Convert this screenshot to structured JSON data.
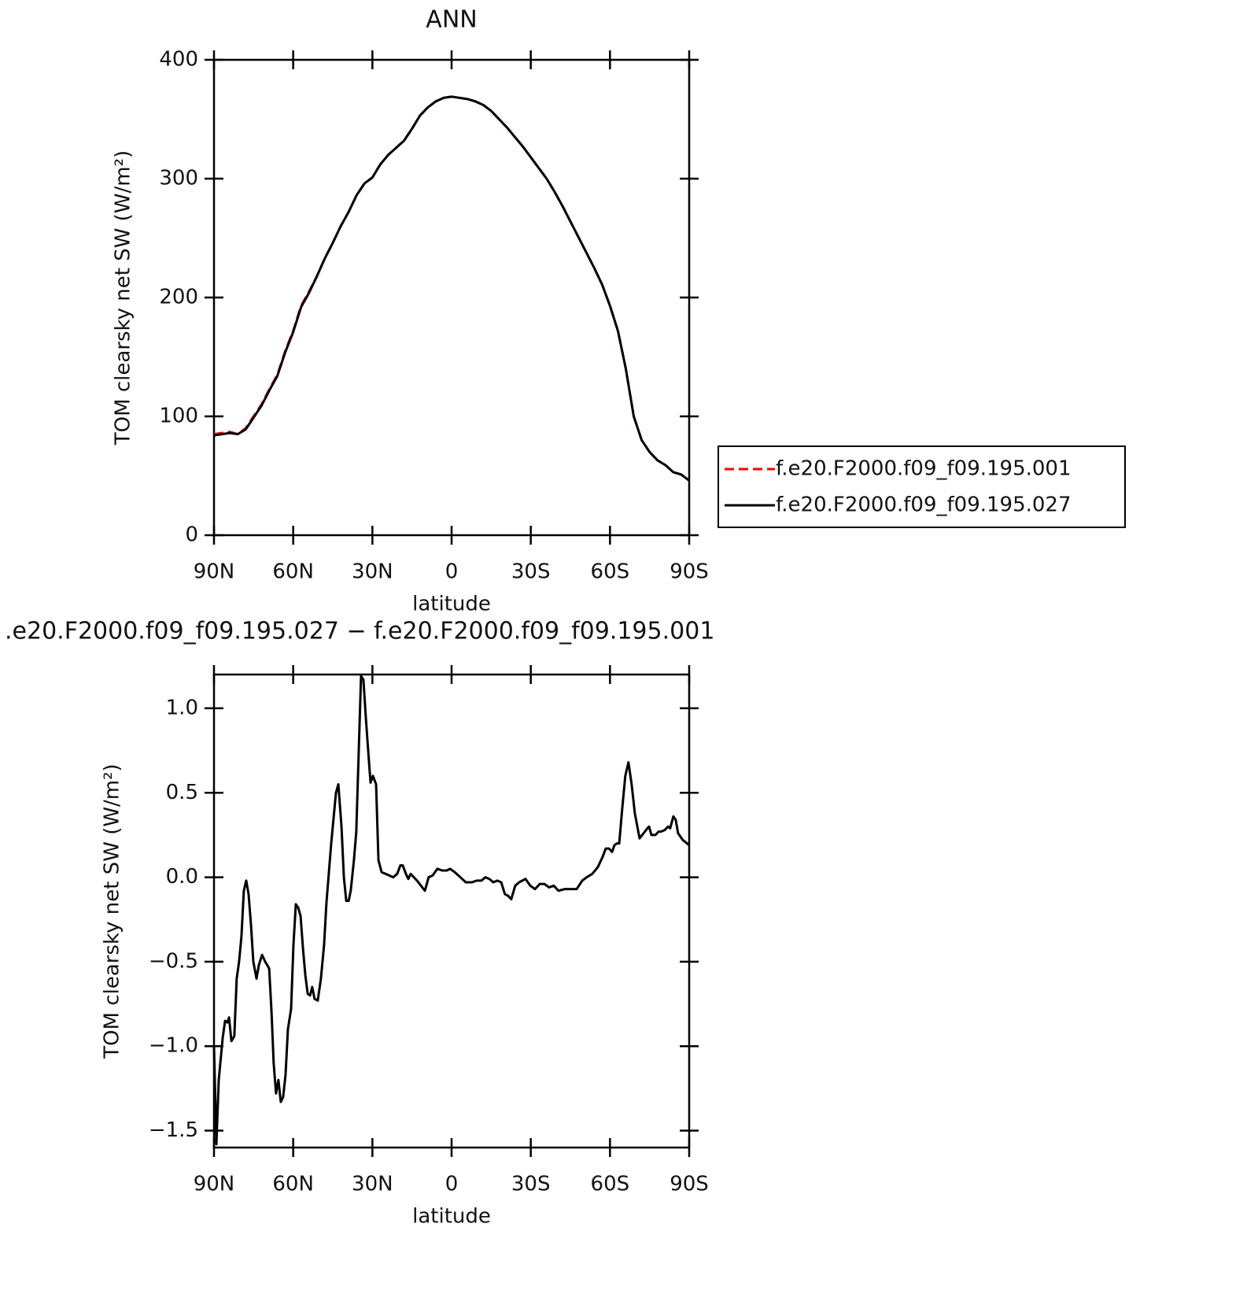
{
  "chart_data": [
    {
      "type": "line",
      "title": "ANN",
      "xlabel": "latitude",
      "ylabel": "TOM clearsky net SW (W/m²)",
      "x": [
        90,
        87,
        84,
        81,
        78,
        75,
        72,
        69,
        66,
        63,
        60,
        57,
        54,
        51,
        48,
        45,
        42,
        39,
        36,
        33,
        30,
        27,
        24,
        21,
        18,
        15,
        12,
        9,
        6,
        3,
        0,
        -3,
        -6,
        -9,
        -12,
        -15,
        -18,
        -21,
        -24,
        -27,
        -30,
        -33,
        -36,
        -39,
        -42,
        -45,
        -48,
        -51,
        -54,
        -57,
        -60,
        -63,
        -66,
        -69,
        -72,
        -75,
        -78,
        -81,
        -84,
        -87,
        -90
      ],
      "series": [
        {
          "name": "f.e20.F2000.f09_f09.195.001",
          "color": "#ff0000",
          "dashed": true,
          "values": [
            85,
            86,
            87,
            85,
            90,
            100,
            110,
            123,
            135,
            155,
            172,
            193,
            205,
            218,
            233,
            246,
            260,
            272,
            286,
            296,
            301,
            312,
            320,
            326,
            332,
            342,
            353,
            360,
            365,
            368,
            369,
            368,
            367,
            365,
            362,
            357,
            350,
            343,
            335,
            327,
            318,
            309,
            300,
            289,
            277,
            264,
            251,
            238,
            225,
            211,
            193,
            172,
            140,
            100,
            80,
            70,
            63,
            59,
            53,
            51,
            46
          ]
        },
        {
          "name": "f.e20.F2000.f09_f09.195.027",
          "color": "#000000",
          "dashed": false,
          "values": [
            84,
            85,
            86,
            85,
            89,
            99,
            109,
            122,
            134,
            154,
            171,
            192,
            204,
            218,
            233,
            246,
            260,
            272,
            286,
            296,
            301,
            312,
            320,
            326,
            332,
            342,
            353,
            360,
            365,
            368,
            369,
            368,
            367,
            365,
            362,
            357,
            350,
            343,
            335,
            327,
            318,
            309,
            300,
            289,
            277,
            264,
            251,
            238,
            225,
            211,
            193,
            172,
            140,
            100,
            80,
            70,
            63,
            59,
            53,
            51,
            46
          ]
        }
      ],
      "xlim": [
        90,
        -90
      ],
      "xticks": [
        {
          "value": 90,
          "label": "90N"
        },
        {
          "value": 60,
          "label": "60N"
        },
        {
          "value": 30,
          "label": "30N"
        },
        0,
        {
          "value": -30,
          "label": "30S"
        },
        {
          "value": -60,
          "label": "60S"
        },
        {
          "value": -90,
          "label": "90S"
        }
      ],
      "ylim": [
        0,
        400
      ],
      "yticks": [
        0,
        100,
        200,
        300,
        400
      ],
      "legend": "right"
    },
    {
      "type": "line",
      "title": ".e20.F2000.f09_f09.195.027 − f.e20.F2000.f09_f09.195.001",
      "xlabel": "latitude",
      "ylabel": "TOM clearsky net SW (W/m²)",
      "x": [
        90,
        89.1,
        88.2,
        86.7,
        85.8,
        84.9,
        84.3,
        83.4,
        82.3,
        81.4,
        80.5,
        79.6,
        78.7,
        77.8,
        76.9,
        76,
        75.1,
        73.9,
        73,
        71.8,
        70.6,
        69.1,
        68.2,
        67.4,
        66.5,
        65.6,
        64.7,
        63.8,
        62.9,
        62,
        60.8,
        59.9,
        59,
        58.1,
        57.2,
        56.3,
        55.4,
        54.5,
        53.6,
        52.8,
        51.9,
        50.7,
        49.5,
        48.3,
        47.4,
        45.6,
        44.7,
        43.8,
        42.9,
        41.7,
        40.8,
        39.9,
        39,
        38.2,
        37,
        36.1,
        34.3,
        33.4,
        32.5,
        31.6,
        30.7,
        29.8,
        28.6,
        27.7,
        26.5,
        25,
        23.6,
        22.1,
        20.6,
        19.4,
        18.5,
        17.3,
        16.4,
        15.5,
        14.3,
        13.1,
        11.6,
        10.1,
        8.7,
        7.2,
        5.4,
        3.6,
        1.8,
        0.6,
        -1.2,
        -3.3,
        -5.4,
        -7.7,
        -9.5,
        -11.3,
        -12.8,
        -14.3,
        -15.8,
        -17.3,
        -18.8,
        -20.2,
        -21.4,
        -22.6,
        -24.1,
        -25.6,
        -28,
        -29.8,
        -31.6,
        -33.4,
        -35.2,
        -36.9,
        -38.7,
        -40.5,
        -42.9,
        -45.3,
        -47.4,
        -49.5,
        -51.2,
        -53.3,
        -55.4,
        -57.2,
        -58.4,
        -59.6,
        -60.8,
        -61.7,
        -62.6,
        -63.5,
        -64.6,
        -65.8,
        -67,
        -68.2,
        -69.4,
        -71.2,
        -72.7,
        -74.2,
        -74.8,
        -75.7,
        -77.2,
        -78.4,
        -79.3,
        -80.8,
        -82,
        -82.8,
        -84,
        -84.9,
        -85.8,
        -87.6,
        -90
      ],
      "values": [
        -1.0,
        -1.58,
        -1.2,
        -0.95,
        -0.85,
        -0.86,
        -0.83,
        -0.97,
        -0.94,
        -0.6,
        -0.5,
        -0.35,
        -0.08,
        -0.02,
        -0.1,
        -0.28,
        -0.5,
        -0.6,
        -0.52,
        -0.46,
        -0.5,
        -0.54,
        -0.8,
        -1.1,
        -1.28,
        -1.2,
        -1.33,
        -1.3,
        -1.17,
        -0.9,
        -0.78,
        -0.4,
        -0.16,
        -0.18,
        -0.23,
        -0.42,
        -0.58,
        -0.69,
        -0.7,
        -0.65,
        -0.72,
        -0.73,
        -0.6,
        -0.4,
        -0.15,
        0.2,
        0.35,
        0.5,
        0.55,
        0.3,
        0.0,
        -0.14,
        -0.14,
        -0.08,
        0.1,
        0.27,
        1.19,
        1.17,
        0.95,
        0.75,
        0.56,
        0.6,
        0.55,
        0.1,
        0.03,
        0.02,
        0.01,
        0.0,
        0.02,
        0.07,
        0.07,
        0.02,
        -0.01,
        0.02,
        0.0,
        -0.02,
        -0.05,
        -0.08,
        0.0,
        0.01,
        0.05,
        0.04,
        0.04,
        0.05,
        0.03,
        0.0,
        -0.03,
        -0.03,
        -0.02,
        -0.02,
        0.0,
        -0.01,
        -0.03,
        -0.02,
        -0.03,
        -0.1,
        -0.11,
        -0.13,
        -0.05,
        -0.03,
        -0.01,
        -0.05,
        -0.07,
        -0.04,
        -0.04,
        -0.06,
        -0.05,
        -0.08,
        -0.07,
        -0.07,
        -0.07,
        -0.02,
        0.0,
        0.02,
        0.06,
        0.12,
        0.17,
        0.17,
        0.15,
        0.19,
        0.2,
        0.2,
        0.4,
        0.6,
        0.68,
        0.55,
        0.38,
        0.23,
        0.26,
        0.29,
        0.3,
        0.25,
        0.25,
        0.27,
        0.27,
        0.28,
        0.3,
        0.29,
        0.36,
        0.34,
        0.26,
        0.22,
        0.19
      ],
      "color": "#000000",
      "xlim": [
        90,
        -90
      ],
      "xticks": [
        {
          "value": 90,
          "label": "90N"
        },
        {
          "value": 60,
          "label": "60N"
        },
        {
          "value": 30,
          "label": "30N"
        },
        0,
        {
          "value": -30,
          "label": "30S"
        },
        {
          "value": -60,
          "label": "60S"
        },
        {
          "value": -90,
          "label": "90S"
        }
      ],
      "ylim": [
        -1.6,
        1.2
      ],
      "yticks": [
        {
          "value": -1.5,
          "label": "−1.5"
        },
        {
          "value": -1.0,
          "label": "−1.0"
        },
        {
          "value": -0.5,
          "label": "−0.5"
        },
        {
          "value": 0.0,
          "label": "0.0"
        },
        0.5,
        {
          "value": 1.0,
          "label": "1.0"
        }
      ]
    }
  ]
}
